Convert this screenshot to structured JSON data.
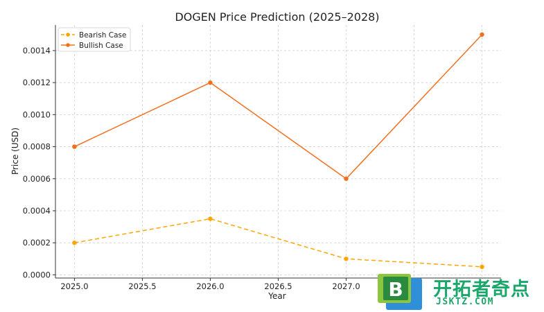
{
  "chart_data": {
    "type": "line",
    "title": "DOGEN Price Prediction (2025–2028)",
    "xlabel": "Year",
    "ylabel": "Price (USD)",
    "x": [
      2025.0,
      2026.0,
      2027.0,
      2028.0
    ],
    "xlim": [
      2024.86,
      2028.14
    ],
    "ylim": [
      -2e-05,
      0.00156
    ],
    "xticks": [
      2025.0,
      2025.5,
      2026.0,
      2026.5,
      2027.0
    ],
    "xtick_labels": [
      "2025.0",
      "2025.5",
      "2026.0",
      "2026.5",
      "2027.0"
    ],
    "yticks": [
      0.0,
      0.0002,
      0.0004,
      0.0006,
      0.0008,
      0.001,
      0.0012,
      0.0014
    ],
    "ytick_labels": [
      "0.0000",
      "0.0002",
      "0.0004",
      "0.0006",
      "0.0008",
      "0.0010",
      "0.0012",
      "0.0014"
    ],
    "grid": true,
    "legend_position": "top-left",
    "series": [
      {
        "name": "Bearish Case",
        "values": [
          0.0002,
          0.00035,
          0.0001,
          5e-05
        ],
        "color": "#ffa500",
        "style": "dashed"
      },
      {
        "name": "Bullish Case",
        "values": [
          0.0008,
          0.0012,
          0.0006,
          0.0015
        ],
        "color": "#f07020",
        "style": "solid"
      }
    ]
  },
  "watermark": {
    "logo_letter": "B",
    "name": "开拓者奇点",
    "domain": "JSKTZ.COM",
    "color": "#1aa86a"
  }
}
